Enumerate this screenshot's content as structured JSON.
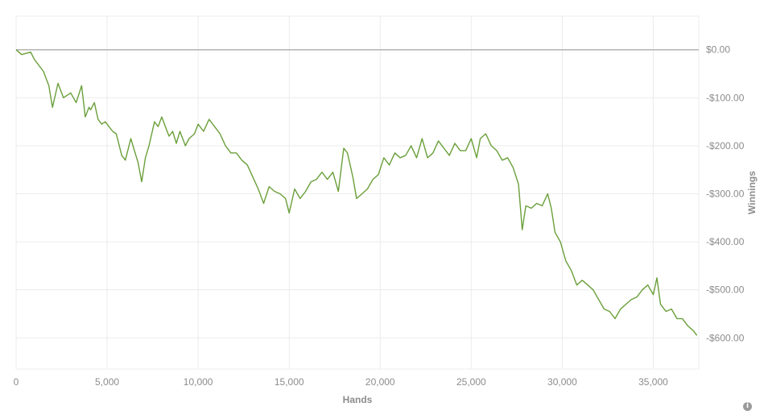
{
  "chart_data": {
    "type": "line",
    "title": "",
    "xlabel": "Hands",
    "ylabel": "Winnings",
    "xlim": [
      0,
      37500
    ],
    "ylim": [
      -665,
      70
    ],
    "x_ticks": [
      0,
      5000,
      10000,
      15000,
      20000,
      25000,
      30000,
      35000
    ],
    "x_tick_labels": [
      "0",
      "5,000",
      "10,000",
      "15,000",
      "20,000",
      "25,000",
      "30,000",
      "35,000"
    ],
    "y_ticks": [
      0,
      -100,
      -200,
      -300,
      -400,
      -500,
      -600
    ],
    "y_tick_labels": [
      "$0.00",
      "-$100.00",
      "-$200.00",
      "-$300.00",
      "-$400.00",
      "-$500.00",
      "-$600.00"
    ],
    "grid": true,
    "reference_line_y": 0,
    "series": [
      {
        "color": "#6a9f3a",
        "x": [
          0,
          300,
          800,
          1000,
          1500,
          1800,
          2000,
          2300,
          2600,
          3000,
          3300,
          3600,
          3800,
          4000,
          4100,
          4300,
          4500,
          4700,
          4900,
          5100,
          5300,
          5500,
          5800,
          6000,
          6300,
          6500,
          6700,
          6900,
          7100,
          7300,
          7600,
          7800,
          8000,
          8200,
          8400,
          8600,
          8800,
          9000,
          9300,
          9500,
          9800,
          10000,
          10300,
          10600,
          10900,
          11200,
          11500,
          11800,
          12100,
          12400,
          12700,
          13000,
          13300,
          13600,
          13900,
          14200,
          14500,
          14800,
          15000,
          15300,
          15600,
          15900,
          16200,
          16500,
          16800,
          17100,
          17400,
          17700,
          18000,
          18200,
          18500,
          18700,
          19000,
          19300,
          19600,
          19900,
          20200,
          20500,
          20800,
          21100,
          21400,
          21700,
          22000,
          22300,
          22600,
          22900,
          23200,
          23500,
          23800,
          24100,
          24400,
          24700,
          25000,
          25300,
          25500,
          25800,
          26100,
          26400,
          26700,
          27000,
          27300,
          27600,
          27800,
          28000,
          28300,
          28600,
          28900,
          29200,
          29400,
          29600,
          29900,
          30200,
          30500,
          30800,
          31100,
          31400,
          31700,
          32000,
          32300,
          32600,
          32900,
          33200,
          33500,
          33800,
          34100,
          34400,
          34700,
          35000,
          35200,
          35400,
          35700,
          36000,
          36300,
          36600,
          36900,
          37200,
          37400
        ],
        "y": [
          0,
          -10,
          -5,
          -20,
          -45,
          -75,
          -120,
          -70,
          -100,
          -90,
          -110,
          -75,
          -140,
          -120,
          -125,
          -110,
          -145,
          -155,
          -150,
          -160,
          -170,
          -175,
          -220,
          -230,
          -185,
          -210,
          -235,
          -275,
          -225,
          -200,
          -150,
          -160,
          -140,
          -160,
          -180,
          -170,
          -195,
          -170,
          -200,
          -185,
          -175,
          -155,
          -170,
          -145,
          -160,
          -175,
          -200,
          -215,
          -215,
          -230,
          -240,
          -265,
          -290,
          -320,
          -285,
          -295,
          -300,
          -310,
          -340,
          -290,
          -310,
          -295,
          -275,
          -270,
          -255,
          -270,
          -255,
          -295,
          -205,
          -215,
          -265,
          -310,
          -300,
          -290,
          -270,
          -260,
          -225,
          -240,
          -215,
          -225,
          -220,
          -200,
          -225,
          -185,
          -225,
          -215,
          -190,
          -205,
          -220,
          -195,
          -210,
          -210,
          -185,
          -225,
          -185,
          -175,
          -200,
          -210,
          -230,
          -225,
          -245,
          -280,
          -375,
          -325,
          -330,
          -320,
          -325,
          -300,
          -330,
          -380,
          -400,
          -440,
          -460,
          -490,
          -480,
          -490,
          -500,
          -520,
          -540,
          -545,
          -560,
          -540,
          -530,
          -520,
          -515,
          -500,
          -490,
          -510,
          -475,
          -530,
          -545,
          -540,
          -560,
          -560,
          -575,
          -585,
          -595
        ]
      }
    ]
  }
}
